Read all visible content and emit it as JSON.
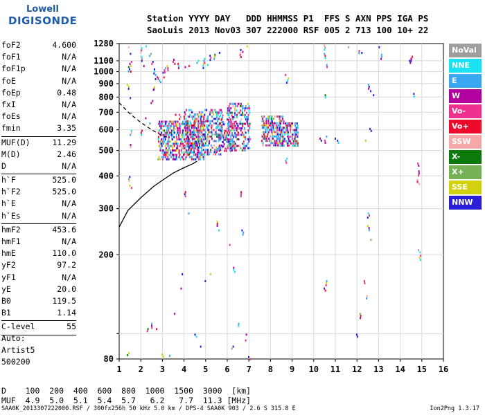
{
  "logo": {
    "line1": "Lowell",
    "line2": "DIGISONDE"
  },
  "header": {
    "line1": "Station YYYY DAY   DDD HHMMSS P1  FFS S AXN PPS IGA PS",
    "line2": "SaoLuis 2013 Nov03 307 222000 RSF 005 2 713 100 10+ 22"
  },
  "params": [
    {
      "k": "foF2",
      "v": "4.600"
    },
    {
      "k": "foF1",
      "v": "N/A"
    },
    {
      "k": "foF1p",
      "v": "N/A"
    },
    {
      "k": "foE",
      "v": "N/A"
    },
    {
      "k": "foEp",
      "v": "0.48"
    },
    {
      "k": "fxI",
      "v": "N/A"
    },
    {
      "k": "foEs",
      "v": "N/A"
    },
    {
      "k": "fmin",
      "v": "3.35",
      "sep": true
    },
    {
      "k": "MUF(D)",
      "v": "11.29"
    },
    {
      "k": "M(D)",
      "v": "2.46"
    },
    {
      "k": "D",
      "v": "N/A",
      "sep": true
    },
    {
      "k": "h`F",
      "v": "525.0"
    },
    {
      "k": "h`F2",
      "v": "525.0"
    },
    {
      "k": "h`E",
      "v": "N/A"
    },
    {
      "k": "h`Es",
      "v": "N/A",
      "sep": true
    },
    {
      "k": "hmF2",
      "v": "453.6"
    },
    {
      "k": "hmF1",
      "v": "N/A"
    },
    {
      "k": "hmE",
      "v": "110.0"
    },
    {
      "k": "yF2",
      "v": "97.2"
    },
    {
      "k": "yF1",
      "v": "N/A"
    },
    {
      "k": "yE",
      "v": "20.0"
    },
    {
      "k": "B0",
      "v": "119.5"
    },
    {
      "k": "B1",
      "v": "1.14",
      "sep": true
    },
    {
      "k": "C-level",
      "v": "55",
      "sep": true
    }
  ],
  "extra": {
    "auto": "Auto:",
    "artist": "Artist5",
    "code": "500200"
  },
  "legend": [
    {
      "label": "NoVal",
      "color": "#9e9e9e"
    },
    {
      "label": "NNE",
      "color": "#19e3f2"
    },
    {
      "label": "E",
      "color": "#3aa7f5"
    },
    {
      "label": "W",
      "color": "#b1009e"
    },
    {
      "label": "Vo-",
      "color": "#f0308e"
    },
    {
      "label": "Vo+",
      "color": "#ee0a2a"
    },
    {
      "label": "SSW",
      "color": "#f7a8a8"
    },
    {
      "label": "X-",
      "color": "#0b7a0b"
    },
    {
      "label": "X+",
      "color": "#74b255"
    },
    {
      "label": "SSE",
      "color": "#d2d10e"
    },
    {
      "label": "NNW",
      "color": "#2b1fd6"
    }
  ],
  "muf_table": {
    "d_label": "D",
    "d_values": [
      "100",
      "200",
      "400",
      "600",
      "800",
      "1000",
      "1500",
      "3000",
      "[km]"
    ],
    "muf_label": "MUF",
    "muf_values": [
      "4.9",
      "5.0",
      "5.1",
      "5.4",
      "5.7",
      "6.2",
      "7.7",
      "11.3",
      "[MHz]"
    ]
  },
  "footer": {
    "left": "SAA0K_2013307222000.RSF / 300fx256h 50 kHz 5.0 km / DPS-4 SAA0K 903 / 2.6 S 315.8 E",
    "right": "Ion2Png 1.3.17"
  },
  "chart_data": {
    "type": "scatter",
    "title": "",
    "xlabel": "",
    "ylabel": "",
    "xlim": [
      1,
      16
    ],
    "ylim": [
      80,
      1280
    ],
    "y_scale": "log",
    "x_ticks": [
      1,
      2,
      3,
      4,
      5,
      6,
      7,
      8,
      9,
      10,
      11,
      12,
      13,
      14,
      15,
      16
    ],
    "y_ticks": [
      80,
      100,
      200,
      300,
      400,
      500,
      600,
      700,
      800,
      900,
      1000,
      1100,
      1280
    ],
    "y_tick_labels": [
      "80",
      "",
      "200",
      "300",
      "400",
      "500",
      "600",
      "700",
      "800",
      "900",
      "1000",
      "1100",
      "1280"
    ],
    "grid": true,
    "legend_position": "right",
    "o_trace": [
      [
        1.0,
        255
      ],
      [
        1.4,
        295
      ],
      [
        2.0,
        330
      ],
      [
        2.6,
        365
      ],
      [
        3.0,
        385
      ],
      [
        3.5,
        410
      ],
      [
        4.0,
        430
      ],
      [
        4.4,
        445
      ],
      [
        4.6,
        455
      ]
    ],
    "x_trace_dashed": [
      [
        1.0,
        760
      ],
      [
        1.5,
        690
      ],
      [
        2.0,
        640
      ],
      [
        2.5,
        600
      ],
      [
        3.0,
        570
      ],
      [
        3.3,
        560
      ]
    ],
    "clusters": [
      {
        "x": [
          2.8,
          4.9
        ],
        "y": [
          460,
          650
        ],
        "density": 0.55
      },
      {
        "x": [
          4.0,
          5.7
        ],
        "y": [
          480,
          720
        ],
        "density": 0.35
      },
      {
        "x": [
          5.5,
          6.3
        ],
        "y": [
          500,
          700
        ],
        "density": 0.3
      },
      {
        "x": [
          6.0,
          7.0
        ],
        "y": [
          500,
          760
        ],
        "density": 0.45
      },
      {
        "x": [
          7.6,
          8.6
        ],
        "y": [
          520,
          680
        ],
        "density": 0.6
      },
      {
        "x": [
          8.4,
          9.3
        ],
        "y": [
          520,
          640
        ],
        "density": 0.5
      }
    ],
    "scattered_points": [
      [
        1.4,
        1250
      ],
      [
        1.45,
        1180
      ],
      [
        1.5,
        1100
      ],
      [
        1.45,
        1050
      ],
      [
        1.5,
        1010
      ],
      [
        1.4,
        900
      ],
      [
        1.5,
        800
      ],
      [
        1.5,
        700
      ],
      [
        1.5,
        600
      ],
      [
        1.5,
        530
      ],
      [
        1.45,
        400
      ],
      [
        1.5,
        370
      ],
      [
        1.4,
        85
      ],
      [
        2.0,
        1240
      ],
      [
        2.0,
        1150
      ],
      [
        2.1,
        1060
      ],
      [
        2.2,
        1260
      ],
      [
        2.4,
        1180
      ],
      [
        2.5,
        1100
      ],
      [
        2.6,
        1030
      ],
      [
        2.7,
        980
      ],
      [
        2.8,
        950
      ],
      [
        2.9,
        920
      ],
      [
        3.0,
        1000
      ],
      [
        2.6,
        880
      ],
      [
        2.6,
        860
      ],
      [
        2.5,
        780
      ],
      [
        2.2,
        670
      ],
      [
        2.4,
        640
      ],
      [
        2.0,
        600
      ],
      [
        3.0,
        960
      ],
      [
        3.1,
        1040
      ],
      [
        3.2,
        1060
      ],
      [
        3.5,
        1120
      ],
      [
        3.7,
        1080
      ],
      [
        4.0,
        1050
      ],
      [
        4.2,
        1060
      ],
      [
        4.6,
        1110
      ],
      [
        4.9,
        1130
      ],
      [
        5.2,
        1160
      ],
      [
        5.4,
        1170
      ],
      [
        5.6,
        1190
      ],
      [
        4.9,
        1080
      ],
      [
        5.1,
        1070
      ],
      [
        6.6,
        1220
      ],
      [
        6.7,
        1200
      ],
      [
        6.9,
        1260
      ],
      [
        6.6,
        1190
      ],
      [
        4.3,
        690
      ],
      [
        4.6,
        690
      ],
      [
        4.9,
        690
      ],
      [
        3.6,
        690
      ],
      [
        3.8,
        690
      ],
      [
        8.7,
        980
      ],
      [
        8.75,
        950
      ],
      [
        8.7,
        590
      ],
      [
        8.7,
        470
      ],
      [
        10.5,
        1270
      ],
      [
        10.5,
        1180
      ],
      [
        10.55,
        1070
      ],
      [
        10.5,
        820
      ],
      [
        10.6,
        570
      ],
      [
        10.3,
        560
      ],
      [
        10.5,
        550
      ],
      [
        11.1,
        550
      ],
      [
        11.0,
        560
      ],
      [
        11.6,
        1250
      ],
      [
        12.1,
        1210
      ],
      [
        12.2,
        1190
      ],
      [
        12.5,
        900
      ],
      [
        12.6,
        850
      ],
      [
        12.7,
        820
      ],
      [
        12.6,
        610
      ],
      [
        12.4,
        550
      ],
      [
        12.5,
        290
      ],
      [
        12.5,
        260
      ],
      [
        12.6,
        230
      ],
      [
        12.3,
        160
      ],
      [
        12.4,
        140
      ],
      [
        13.0,
        1250
      ],
      [
        13.1,
        1170
      ],
      [
        14.5,
        1150
      ],
      [
        14.45,
        1130
      ],
      [
        14.6,
        830
      ],
      [
        14.6,
        810
      ],
      [
        14.8,
        450
      ],
      [
        14.85,
        420
      ],
      [
        14.8,
        390
      ],
      [
        14.9,
        200
      ],
      [
        14.85,
        210
      ],
      [
        10.5,
        150
      ],
      [
        10.55,
        160
      ],
      [
        12.1,
        120
      ],
      [
        12.0,
        100
      ],
      [
        2.3,
        105
      ],
      [
        2.5,
        110
      ],
      [
        2.7,
        105
      ],
      [
        3.0,
        84
      ],
      [
        3.3,
        83
      ],
      [
        3.5,
        120
      ],
      [
        4.0,
        350
      ],
      [
        4.2,
        290
      ],
      [
        3.8,
        150
      ],
      [
        3.9,
        170
      ],
      [
        4.5,
        100
      ],
      [
        4.7,
        90
      ],
      [
        5.0,
        160
      ],
      [
        5.2,
        170
      ],
      [
        5.5,
        270
      ],
      [
        5.6,
        250
      ],
      [
        6.1,
        220
      ],
      [
        6.3,
        180
      ],
      [
        6.6,
        350
      ],
      [
        6.7,
        250
      ],
      [
        6.9,
        100
      ],
      [
        7.0,
        82
      ],
      [
        6.2,
        90
      ],
      [
        6.8,
        95
      ],
      [
        6.5,
        110
      ]
    ]
  }
}
